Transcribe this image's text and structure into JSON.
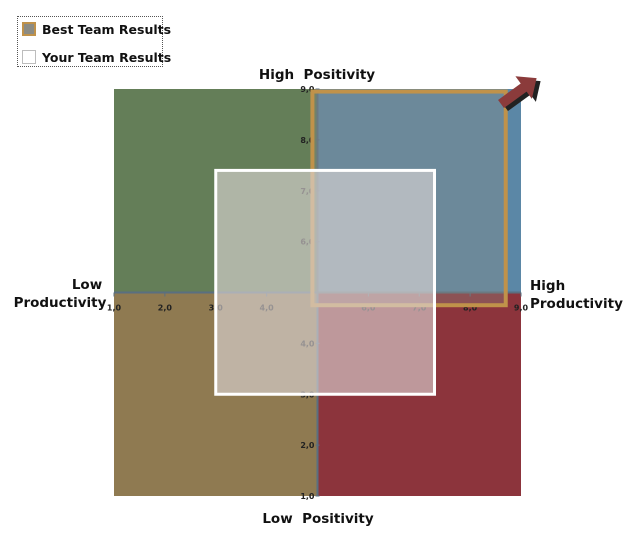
{
  "legend": {
    "best_label": "Best Team Results",
    "yours_label": "Your Team Results"
  },
  "axes": {
    "top_label": "High  Positivity",
    "bottom_label": "Low  Positivity",
    "left_label_line1": "Low",
    "left_label_line2": "Productivity",
    "right_label_line1": "High",
    "right_label_line2": "Productivity"
  },
  "colors": {
    "quadrant_top_left": "#647e58",
    "quadrant_top_right": "#5b87a6",
    "quadrant_bottom_left": "#8f7a51",
    "quadrant_bottom_right": "#8c343c",
    "best_outline": "#c0924a",
    "best_fill": "#8c8c84",
    "yours_outline": "#ffffff",
    "yours_fill": "#ddd7d6",
    "arrow": "#8b3b3b",
    "arrow_shadow": "#222222",
    "axis_line": "#5a6f80"
  },
  "chart_data": {
    "type": "quadrant",
    "x_axis": {
      "min": 1.0,
      "max": 9.0,
      "cross": 5.0,
      "ticks": [
        "1,0",
        "2,0",
        "3,0",
        "4,0",
        "6,0",
        "7,0",
        "8,0",
        "9,0"
      ],
      "tick_values": [
        1,
        2,
        3,
        4,
        6,
        7,
        8,
        9
      ]
    },
    "y_axis": {
      "min": 1.0,
      "max": 9.0,
      "cross": 5.0,
      "ticks": [
        "1,0",
        "2,0",
        "3,0",
        "4,0",
        "6,0",
        "7,0",
        "8,0",
        "9,0"
      ],
      "tick_values": [
        1,
        2,
        3,
        4,
        6,
        7,
        8,
        9
      ]
    },
    "regions": [
      {
        "name": "Best Team Results",
        "x_min": 4.9,
        "x_max": 8.7,
        "y_min": 4.75,
        "y_max": 8.95
      },
      {
        "name": "Your Team Results",
        "x_min": 3.0,
        "x_max": 7.3,
        "y_min": 3.0,
        "y_max": 7.4
      }
    ]
  }
}
